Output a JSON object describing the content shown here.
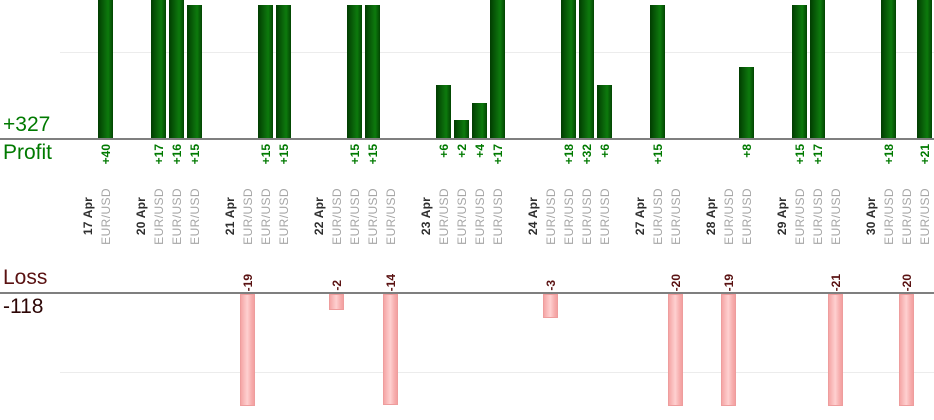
{
  "summary": {
    "profit_total": "+327",
    "profit_label": "Profit",
    "loss_label": "Loss",
    "loss_total": "-118"
  },
  "colors": {
    "profit_text": "#007a00",
    "profit_total_text": "#007a00",
    "loss_text": "#5a1212",
    "loss_total_text": "#2d0606",
    "profit_bar": "#0a660a",
    "loss_bar": "#f7aeae",
    "date_text": "#2e2e2e",
    "symbol_text": "#a6a6a6",
    "axis_line": "#7f7f7f",
    "grid_line": "#ececec"
  },
  "chart_data": {
    "type": "bar",
    "description": "Per-trade profit and loss grouped by trade date",
    "positive_axis_label": "Profit",
    "negative_axis_label": "Loss",
    "profit_total": 327,
    "loss_total": -118,
    "gridlines": {
      "profit_value": 10,
      "loss_value": -10
    },
    "groups": [
      {
        "date": "17 Apr",
        "trades": [
          {
            "symbol": "EUR/USD",
            "value": 40,
            "label": "+40"
          }
        ]
      },
      {
        "date": "20 Apr",
        "trades": [
          {
            "symbol": "EUR/USD",
            "value": 17,
            "label": "+17"
          },
          {
            "symbol": "EUR/USD",
            "value": 16,
            "label": "+16"
          },
          {
            "symbol": "EUR/USD",
            "value": 15,
            "label": "+15"
          }
        ]
      },
      {
        "date": "21 Apr",
        "trades": [
          {
            "symbol": "EUR/USD",
            "value": -19,
            "label": "-19"
          },
          {
            "symbol": "EUR/USD",
            "value": 15,
            "label": "+15"
          },
          {
            "symbol": "EUR/USD",
            "value": 15,
            "label": "+15"
          }
        ]
      },
      {
        "date": "22 Apr",
        "trades": [
          {
            "symbol": "EUR/USD",
            "value": -2,
            "label": "-2"
          },
          {
            "symbol": "EUR/USD",
            "value": 15,
            "label": "+15"
          },
          {
            "symbol": "EUR/USD",
            "value": 15,
            "label": "+15"
          },
          {
            "symbol": "EUR/USD",
            "value": -14,
            "label": "-14"
          }
        ]
      },
      {
        "date": "23 Apr",
        "trades": [
          {
            "symbol": "EUR/USD",
            "value": 6,
            "label": "+6"
          },
          {
            "symbol": "EUR/USD",
            "value": 2,
            "label": "+2"
          },
          {
            "symbol": "EUR/USD",
            "value": 4,
            "label": "+4"
          },
          {
            "symbol": "EUR/USD",
            "value": 17,
            "label": "+17"
          }
        ]
      },
      {
        "date": "24 Apr",
        "trades": [
          {
            "symbol": "EUR/USD",
            "value": -3,
            "label": "-3"
          },
          {
            "symbol": "EUR/USD",
            "value": 18,
            "label": "+18"
          },
          {
            "symbol": "EUR/USD",
            "value": 32,
            "label": "+32"
          },
          {
            "symbol": "EUR/USD",
            "value": 6,
            "label": "+6"
          }
        ]
      },
      {
        "date": "27 Apr",
        "trades": [
          {
            "symbol": "EUR/USD",
            "value": 15,
            "label": "+15"
          },
          {
            "symbol": "EUR/USD",
            "value": -20,
            "label": "-20"
          }
        ]
      },
      {
        "date": "28 Apr",
        "trades": [
          {
            "symbol": "EUR/USD",
            "value": -19,
            "label": "-19"
          },
          {
            "symbol": "EUR/USD",
            "value": 8,
            "label": "+8"
          }
        ]
      },
      {
        "date": "29 Apr",
        "trades": [
          {
            "symbol": "EUR/USD",
            "value": 15,
            "label": "+15"
          },
          {
            "symbol": "EUR/USD",
            "value": 17,
            "label": "+17"
          },
          {
            "symbol": "EUR/USD",
            "value": -21,
            "label": "-21"
          }
        ]
      },
      {
        "date": "30 Apr",
        "trades": [
          {
            "symbol": "EUR/USD",
            "value": 18,
            "label": "+18"
          },
          {
            "symbol": "EUR/USD",
            "value": -20,
            "label": "-20"
          },
          {
            "symbol": "EUR/USD",
            "value": 21,
            "label": "+21"
          }
        ]
      }
    ]
  }
}
